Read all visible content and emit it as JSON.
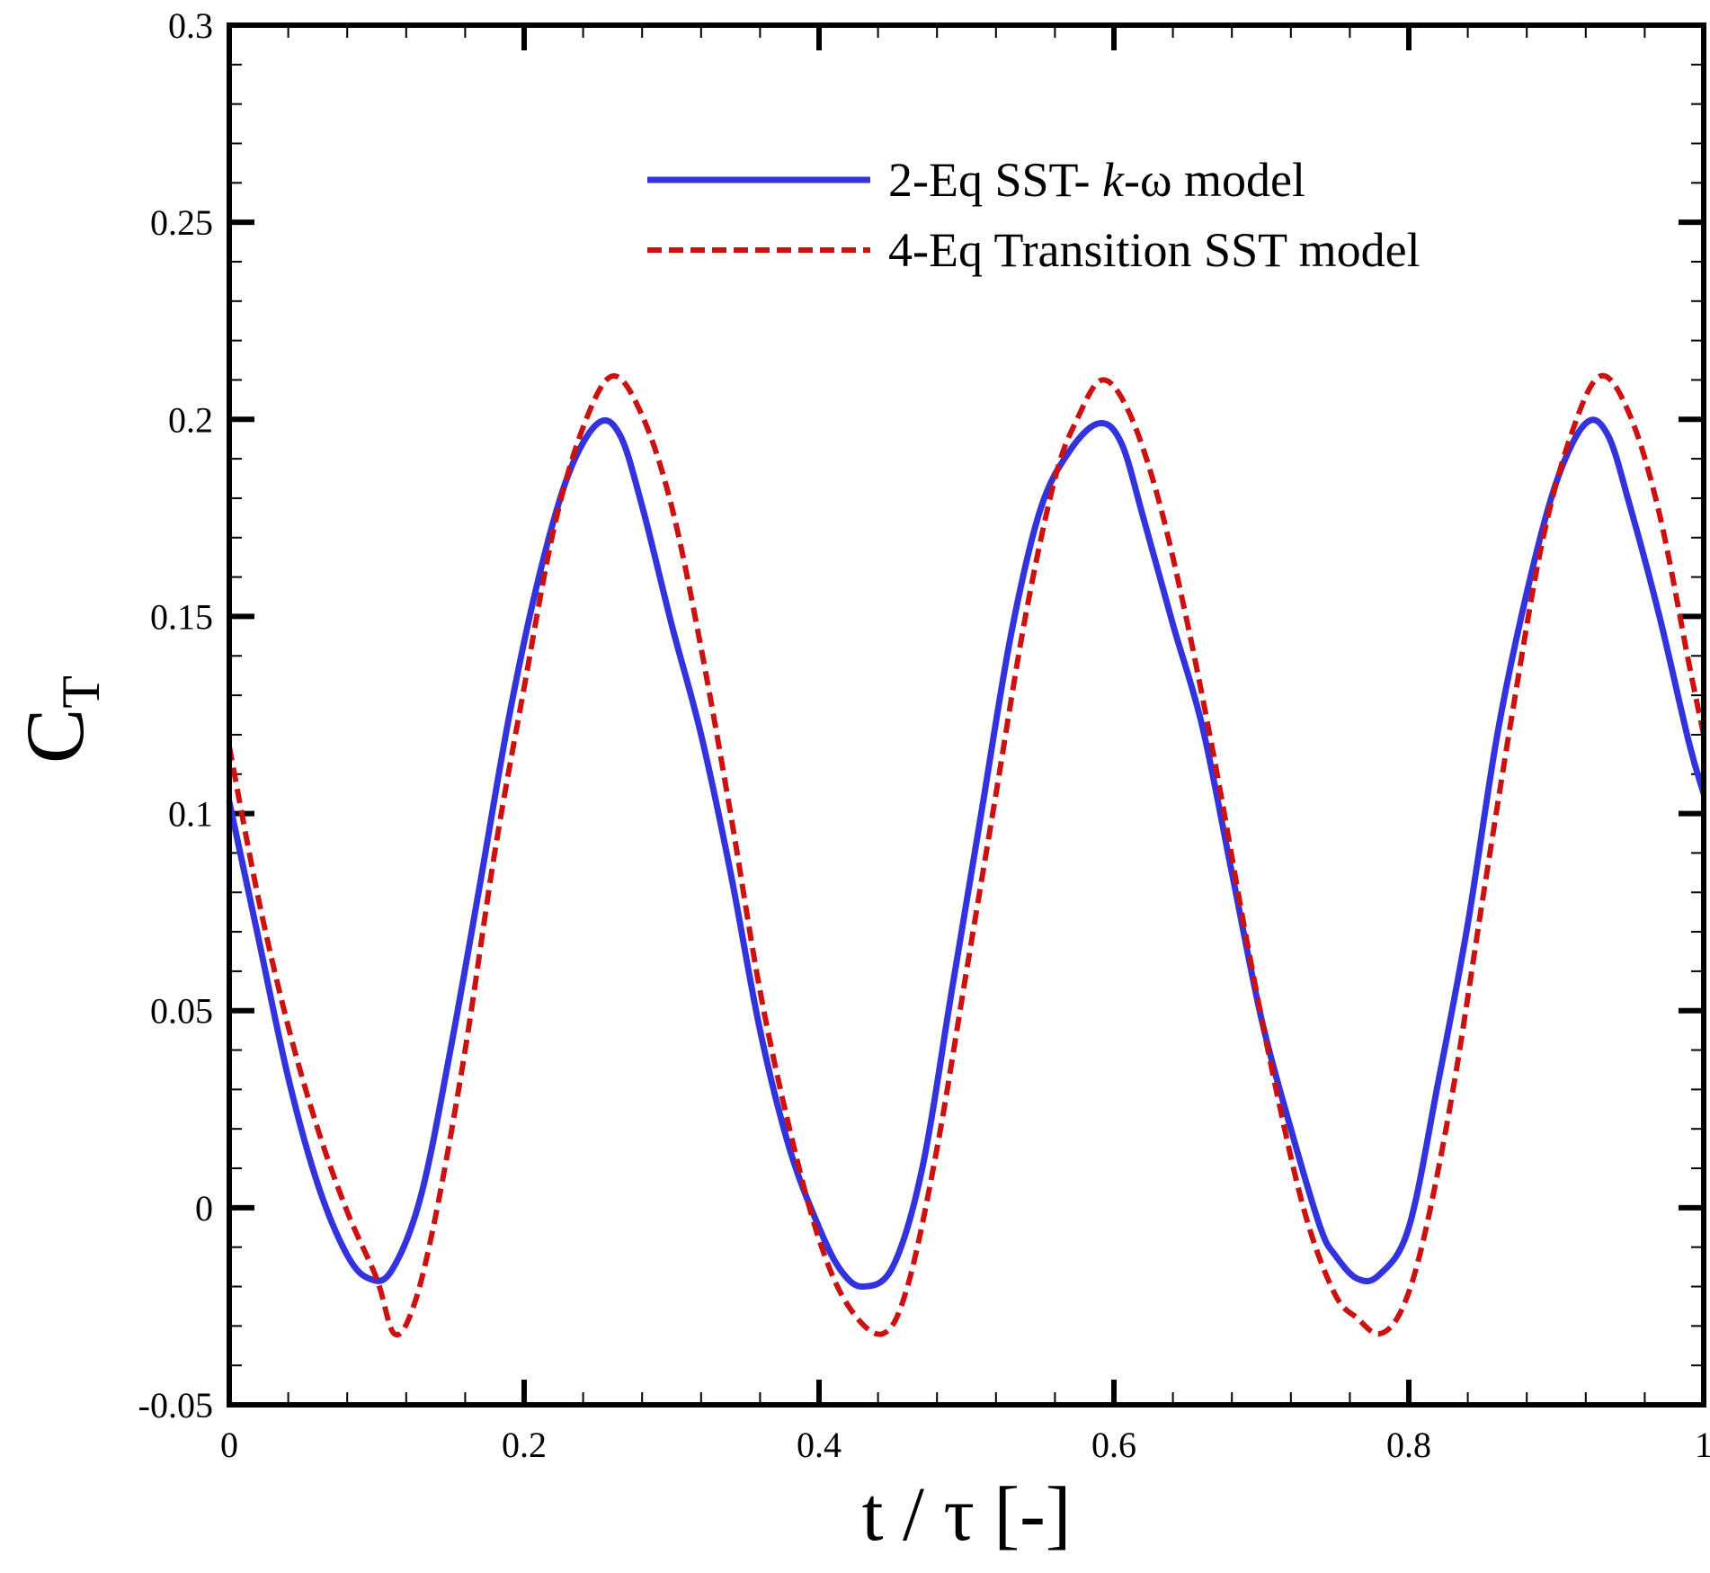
{
  "chart_data": {
    "type": "line",
    "title": "",
    "xlabel": "t / τ [-]",
    "ylabel": {
      "main": "C",
      "sub": "T"
    },
    "xlim": [
      0,
      1
    ],
    "ylim": [
      -0.05,
      0.3
    ],
    "x_ticks": [
      {
        "value": 0,
        "label": "0"
      },
      {
        "value": 0.2,
        "label": "0.2"
      },
      {
        "value": 0.4,
        "label": "0.4"
      },
      {
        "value": 0.6,
        "label": "0.6"
      },
      {
        "value": 0.8,
        "label": "0.8"
      },
      {
        "value": 1,
        "label": "1"
      }
    ],
    "y_ticks": [
      {
        "value": -0.05,
        "label": "-0.05"
      },
      {
        "value": 0,
        "label": "0"
      },
      {
        "value": 0.05,
        "label": "0.05"
      },
      {
        "value": 0.1,
        "label": "0.1"
      },
      {
        "value": 0.15,
        "label": "0.15"
      },
      {
        "value": 0.2,
        "label": "0.2"
      },
      {
        "value": 0.25,
        "label": "0.25"
      },
      {
        "value": 0.3,
        "label": "0.3"
      }
    ],
    "legend_position": "top-right",
    "grid": false,
    "series": [
      {
        "name": "2-Eq SST- k-ω model",
        "legend_parts": [
          "2-Eq SST- ",
          "k",
          "-ω model"
        ],
        "color": "#3333dd",
        "style": "solid",
        "x": [
          0,
          0.02,
          0.04,
          0.06,
          0.08,
          0.095,
          0.11,
          0.13,
          0.15,
          0.17,
          0.19,
          0.21,
          0.23,
          0.25,
          0.265,
          0.28,
          0.3,
          0.32,
          0.34,
          0.36,
          0.38,
          0.4,
          0.415,
          0.43,
          0.45,
          0.47,
          0.49,
          0.51,
          0.53,
          0.55,
          0.57,
          0.59,
          0.605,
          0.62,
          0.64,
          0.66,
          0.68,
          0.7,
          0.72,
          0.74,
          0.75,
          0.765,
          0.78,
          0.8,
          0.82,
          0.84,
          0.86,
          0.88,
          0.9,
          0.92,
          0.935,
          0.95,
          0.97,
          0.99,
          1.0
        ],
        "y": [
          0.103,
          0.068,
          0.033,
          0.006,
          -0.012,
          -0.018,
          -0.016,
          0.003,
          0.04,
          0.082,
          0.125,
          0.16,
          0.186,
          0.199,
          0.196,
          0.178,
          0.148,
          0.12,
          0.085,
          0.045,
          0.015,
          -0.005,
          -0.016,
          -0.02,
          -0.015,
          0.01,
          0.055,
          0.1,
          0.145,
          0.177,
          0.192,
          0.199,
          0.194,
          0.175,
          0.148,
          0.122,
          0.085,
          0.048,
          0.02,
          -0.005,
          -0.012,
          -0.018,
          -0.017,
          -0.005,
          0.032,
          0.072,
          0.12,
          0.156,
          0.184,
          0.199,
          0.196,
          0.178,
          0.15,
          0.118,
          0.105
        ]
      },
      {
        "name": "4-Eq Transition SST model",
        "legend_parts": [
          "4-Eq Transition SST model"
        ],
        "color": "#cc1111",
        "style": "dashed",
        "x": [
          0,
          0.02,
          0.04,
          0.06,
          0.08,
          0.1,
          0.112,
          0.125,
          0.14,
          0.16,
          0.18,
          0.2,
          0.22,
          0.24,
          0.26,
          0.28,
          0.3,
          0.32,
          0.34,
          0.36,
          0.38,
          0.4,
          0.42,
          0.443,
          0.46,
          0.48,
          0.5,
          0.52,
          0.54,
          0.56,
          0.575,
          0.592,
          0.61,
          0.63,
          0.65,
          0.67,
          0.69,
          0.71,
          0.73,
          0.75,
          0.765,
          0.78,
          0.795,
          0.81,
          0.83,
          0.85,
          0.87,
          0.89,
          0.91,
          0.93,
          0.95,
          0.97,
          0.99,
          1.0
        ],
        "y": [
          0.117,
          0.078,
          0.046,
          0.02,
          -0.001,
          -0.018,
          -0.032,
          -0.025,
          -0.002,
          0.04,
          0.09,
          0.132,
          0.172,
          0.198,
          0.211,
          0.201,
          0.178,
          0.142,
          0.1,
          0.055,
          0.02,
          -0.008,
          -0.025,
          -0.032,
          -0.02,
          0.015,
          0.06,
          0.105,
          0.15,
          0.185,
          0.2,
          0.21,
          0.202,
          0.18,
          0.148,
          0.11,
          0.068,
          0.03,
          -0.002,
          -0.022,
          -0.028,
          -0.032,
          -0.026,
          -0.008,
          0.03,
          0.078,
          0.125,
          0.168,
          0.196,
          0.211,
          0.201,
          0.176,
          0.138,
          0.12
        ]
      }
    ]
  }
}
